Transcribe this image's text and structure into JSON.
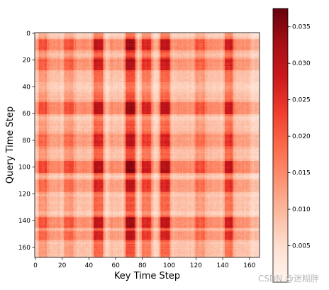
{
  "chart_data": {
    "type": "heatmap",
    "title": "",
    "xlabel": "Key Time Step",
    "ylabel": "Query Time Step",
    "n_steps": 168,
    "x_ticks": [
      0,
      20,
      40,
      60,
      80,
      100,
      120,
      140,
      160
    ],
    "y_ticks": [
      0,
      20,
      40,
      60,
      80,
      100,
      120,
      140,
      160
    ],
    "colormap": "Reds",
    "color_range": [
      0.0,
      0.0375
    ],
    "colorbar_ticks": [
      0.005,
      0.01,
      0.015,
      0.02,
      0.025,
      0.03,
      0.035
    ],
    "colorbar_tick_labels": [
      "0.005",
      "0.010",
      "0.015",
      "0.020",
      "0.025",
      "0.030",
      "0.035"
    ],
    "bright_key_bands": [
      {
        "key_range": [
          44,
          50
        ],
        "strength": 0.55
      },
      {
        "key_range": [
          68,
          74
        ],
        "strength": 0.65
      },
      {
        "key_range": [
          80,
          86
        ],
        "strength": 0.45
      },
      {
        "key_range": [
          94,
          100
        ],
        "strength": 0.55
      },
      {
        "key_range": [
          142,
          147
        ],
        "strength": 0.5
      },
      {
        "key_range": [
          22,
          28
        ],
        "strength": 0.3
      },
      {
        "key_range": [
          120,
          126
        ],
        "strength": 0.3
      },
      {
        "key_range": [
          3,
          8
        ],
        "strength": 0.3
      }
    ],
    "bright_query_bands": [
      {
        "query_range": [
          5,
          12
        ],
        "strength": 0.45
      },
      {
        "query_range": [
          20,
          27
        ],
        "strength": 0.4
      },
      {
        "query_range": [
          52,
          60
        ],
        "strength": 0.45
      },
      {
        "query_range": [
          76,
          84
        ],
        "strength": 0.35
      },
      {
        "query_range": [
          96,
          104
        ],
        "strength": 0.5
      },
      {
        "query_range": [
          110,
          118
        ],
        "strength": 0.35
      },
      {
        "query_range": [
          138,
          145
        ],
        "strength": 0.45
      },
      {
        "query_range": [
          148,
          154
        ],
        "strength": 0.35
      }
    ],
    "faint_key_bands": [
      [
        10,
        18
      ],
      [
        30,
        40
      ],
      [
        56,
        64
      ],
      [
        104,
        116
      ],
      [
        128,
        138
      ],
      [
        150,
        160
      ]
    ],
    "faint_query_bands": [
      [
        14,
        19
      ],
      [
        30,
        36
      ],
      [
        44,
        50
      ],
      [
        66,
        74
      ],
      [
        86,
        94
      ],
      [
        122,
        132
      ],
      [
        158,
        166
      ]
    ]
  },
  "watermark": "CSDN @迷糊胖"
}
